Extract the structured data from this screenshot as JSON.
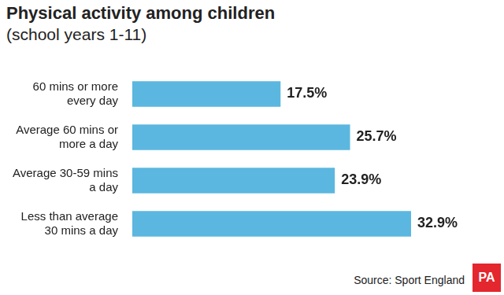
{
  "chart_data": {
    "type": "bar",
    "title": "Physical activity among children",
    "subtitle": "(school years 1-11)",
    "categories": [
      "60 mins or more every day",
      "Average 60 mins or more a day",
      "Average 30-59 mins a day",
      "Less than average 30 mins a day"
    ],
    "values": [
      17.5,
      25.7,
      23.9,
      32.9
    ],
    "value_labels": [
      "17.5%",
      "25.7%",
      "23.9%",
      "32.9%"
    ],
    "color": "#5bb7df",
    "orientation": "horizontal",
    "xlim": [
      0,
      32.9
    ],
    "grid": false,
    "tick_labels": "y",
    "data_labels": true,
    "source": "Source: Sport England",
    "logo": "PA"
  }
}
